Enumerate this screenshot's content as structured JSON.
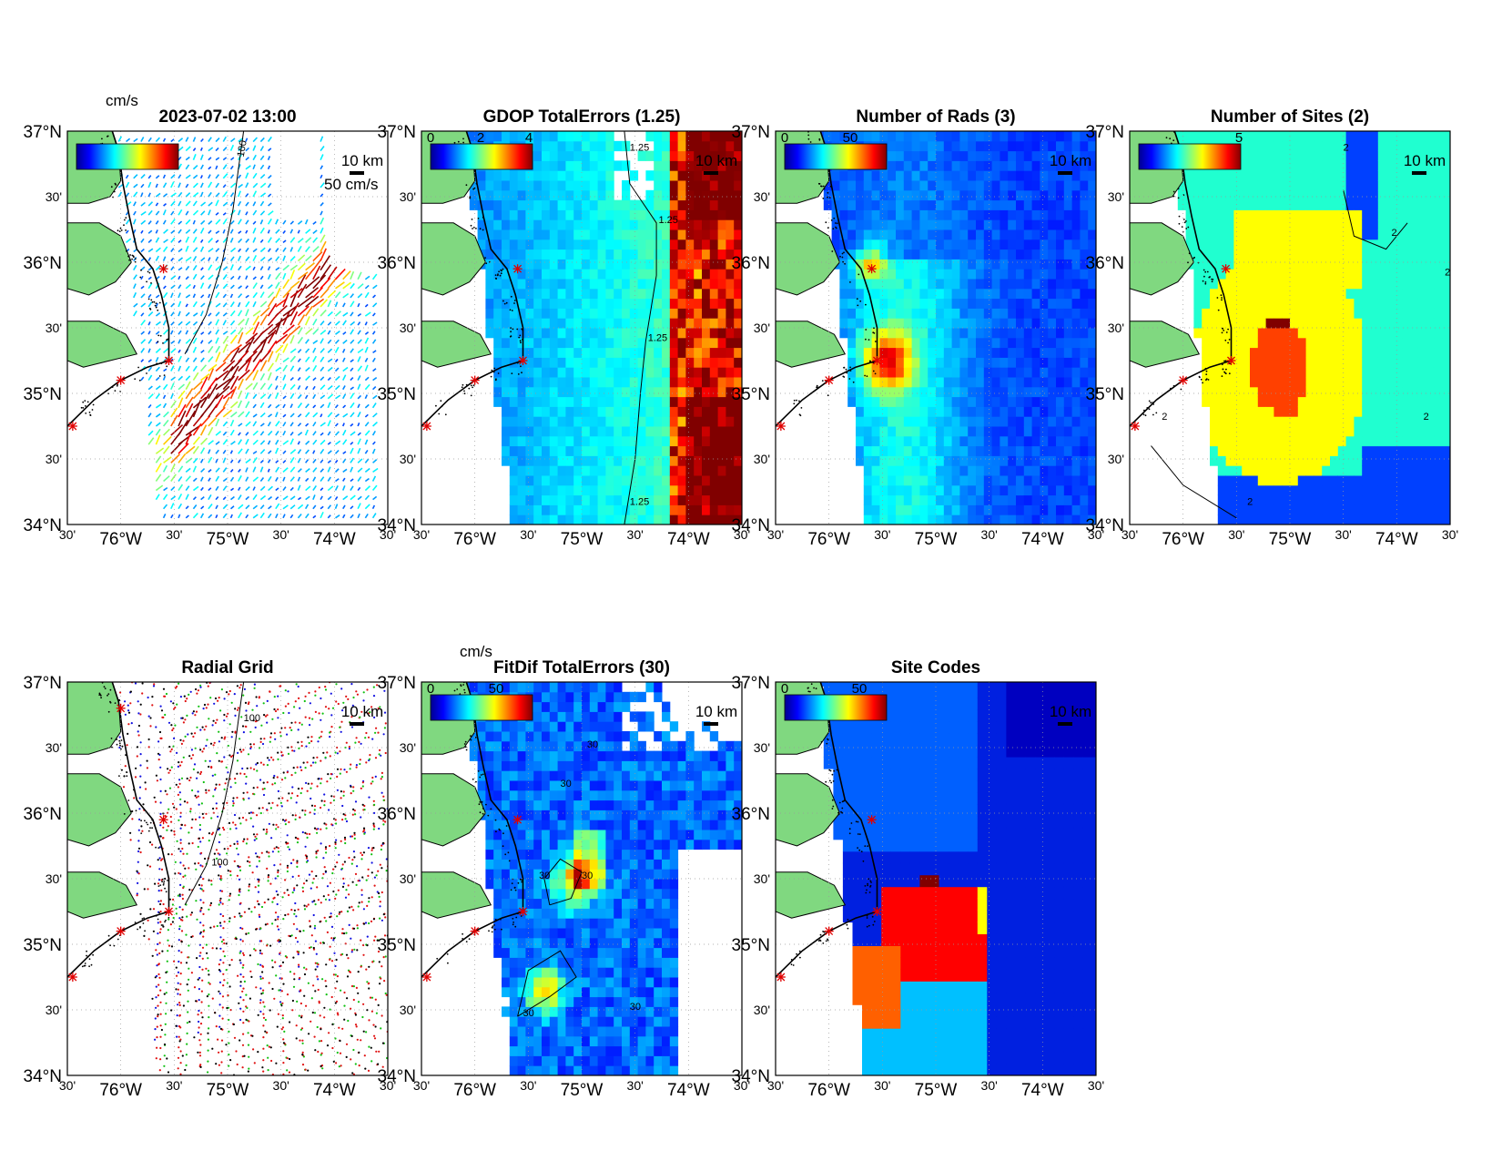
{
  "figure": {
    "timestamp": "2023-07-02 13:00"
  },
  "map": {
    "lat_range": [
      34.0,
      37.0
    ],
    "lon_range": [
      -76.5,
      -73.5
    ],
    "lat_ticks": [
      {
        "value": 37.0,
        "label": "37°N"
      },
      {
        "value": 36.5,
        "label": "30'"
      },
      {
        "value": 36.0,
        "label": "36°N"
      },
      {
        "value": 35.5,
        "label": "30'"
      },
      {
        "value": 35.0,
        "label": "35°N"
      },
      {
        "value": 34.5,
        "label": "30'"
      },
      {
        "value": 34.0,
        "label": "34°N"
      }
    ],
    "lon_ticks": [
      {
        "value": -76.5,
        "label": "30'"
      },
      {
        "value": -76.0,
        "label": "76°W"
      },
      {
        "value": -75.5,
        "label": "30'"
      },
      {
        "value": -75.0,
        "label": "75°W"
      },
      {
        "value": -74.5,
        "label": "30'"
      },
      {
        "value": -74.0,
        "label": "74°W"
      },
      {
        "value": -73.5,
        "label": "30'"
      }
    ],
    "scale_bar_label": "10 km",
    "land_color": "#80d880",
    "ocean_color": "#ffffff",
    "site_color": "#e00000",
    "sites": [
      {
        "lon": -76.0,
        "lat": 36.8
      },
      {
        "lon": -75.6,
        "lat": 35.95
      },
      {
        "lon": -75.55,
        "lat": 35.25
      },
      {
        "lon": -76.0,
        "lat": 35.1
      },
      {
        "lon": -76.45,
        "lat": 34.75
      }
    ]
  },
  "panels": [
    {
      "id": "totals",
      "title": "2023-07-02 13:00",
      "colorbar_unit": "cm/s",
      "reference_vector_label": "50 cm/s",
      "contour_label": "100",
      "colorbar_ticks": []
    },
    {
      "id": "gdop",
      "title": "GDOP TotalErrors (1.25)",
      "colorbar_ticks": [
        "0",
        "2",
        "4"
      ],
      "contour_labels": [
        "1.25",
        "1.25",
        "1.25",
        "1.25"
      ]
    },
    {
      "id": "nrads",
      "title": "Number of Rads (3)",
      "colorbar_ticks": [
        "0",
        "50"
      ],
      "contour_labels": [
        "3",
        "3"
      ]
    },
    {
      "id": "nsites",
      "title": "Number of Sites (2)",
      "colorbar_ticks": [
        "5"
      ],
      "contour_labels": [
        "2",
        "2",
        "2",
        "2",
        "2",
        "2"
      ]
    },
    {
      "id": "radial",
      "title": "Radial Grid",
      "contour_labels": [
        "100",
        "100"
      ],
      "site_colors": [
        "#1010e0",
        "#e01010",
        "#10c010",
        "#e01010",
        "#000000"
      ]
    },
    {
      "id": "fitdif",
      "title": "FitDif TotalErrors (30)",
      "colorbar_unit": "cm/s",
      "colorbar_ticks": [
        "0",
        "50"
      ],
      "contour_labels": [
        "30",
        "30",
        "30",
        "30",
        "30",
        "30"
      ]
    },
    {
      "id": "sitecodes",
      "title": "Site Codes",
      "colorbar_ticks": [
        "0",
        "50"
      ]
    }
  ]
}
